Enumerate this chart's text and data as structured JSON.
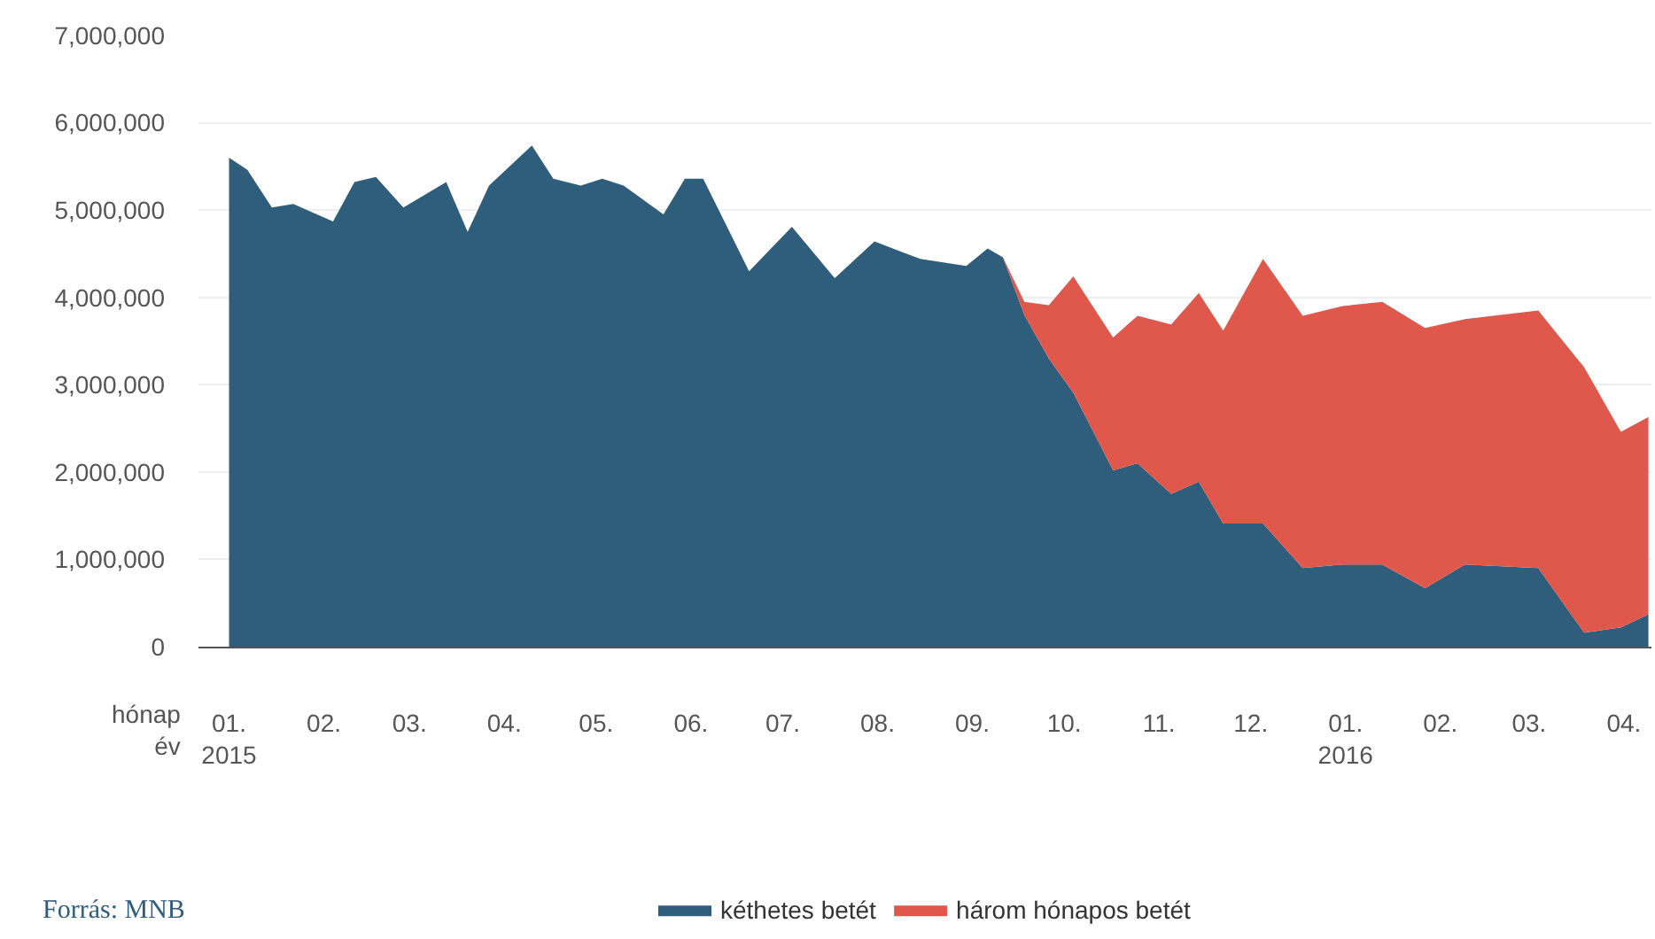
{
  "chart_data": {
    "type": "area",
    "stacked": true,
    "x": [
      "2015-01-01",
      "2015-01-07",
      "2015-01-15",
      "2015-01-22",
      "2015-02-04",
      "2015-02-11",
      "2015-02-18",
      "2015-02-27",
      "2015-03-13",
      "2015-03-20",
      "2015-03-27",
      "2015-04-10",
      "2015-04-17",
      "2015-04-26",
      "2015-05-03",
      "2015-05-10",
      "2015-05-23",
      "2015-05-30",
      "2015-06-05",
      "2015-06-20",
      "2015-07-04",
      "2015-07-18",
      "2015-07-31",
      "2015-08-15",
      "2015-08-30",
      "2015-09-06",
      "2015-09-11",
      "2015-09-18",
      "2015-09-26",
      "2015-10-04",
      "2015-10-17",
      "2015-10-25",
      "2015-11-05",
      "2015-11-14",
      "2015-11-22",
      "2015-12-05",
      "2015-12-18",
      "2015-12-31",
      "2016-01-13",
      "2016-01-27",
      "2016-02-09",
      "2016-03-04",
      "2016-03-19",
      "2016-03-31",
      "2016-04-09"
    ],
    "series": [
      {
        "name": "kéthetes betét",
        "color": "#2f5d7c",
        "values": [
          5600000,
          5460000,
          5030000,
          5070000,
          4870000,
          5320000,
          5380000,
          5030000,
          5320000,
          4750000,
          5280000,
          5740000,
          5360000,
          5280000,
          5360000,
          5280000,
          4950000,
          5360000,
          5360000,
          4300000,
          4810000,
          4220000,
          4640000,
          4440000,
          4360000,
          4560000,
          4460000,
          3800000,
          3300000,
          2910000,
          2020000,
          2100000,
          1750000,
          1890000,
          1410000,
          1410000,
          900000,
          940000,
          940000,
          670000,
          940000,
          900000,
          160000,
          220000,
          370000
        ]
      },
      {
        "name": "három hónapos betét",
        "color": "#e0574c",
        "values": [
          0,
          0,
          0,
          0,
          0,
          0,
          0,
          0,
          0,
          0,
          0,
          0,
          0,
          0,
          0,
          0,
          0,
          0,
          0,
          0,
          0,
          0,
          0,
          0,
          0,
          0,
          0,
          150000,
          610000,
          1330000,
          1520000,
          1690000,
          1940000,
          2160000,
          2210000,
          3030000,
          2890000,
          2960000,
          3010000,
          2980000,
          2810000,
          2950000,
          3040000,
          2240000,
          2260000
        ]
      }
    ],
    "xlabel": "hónap\név",
    "xlim": [
      "2014-12-22",
      "2016-04-10"
    ],
    "xticks": [
      {
        "value": "2015-01-01",
        "label": "01.\n2015"
      },
      {
        "value": "2015-02-01",
        "label": "02."
      },
      {
        "value": "2015-03-01",
        "label": "03."
      },
      {
        "value": "2015-04-01",
        "label": "04."
      },
      {
        "value": "2015-05-01",
        "label": "05."
      },
      {
        "value": "2015-06-01",
        "label": "06."
      },
      {
        "value": "2015-07-01",
        "label": "07."
      },
      {
        "value": "2015-08-01",
        "label": "08."
      },
      {
        "value": "2015-09-01",
        "label": "09."
      },
      {
        "value": "2015-10-01",
        "label": "10."
      },
      {
        "value": "2015-11-01",
        "label": "11."
      },
      {
        "value": "2015-12-01",
        "label": "12."
      },
      {
        "value": "2016-01-01",
        "label": "01.\n2016"
      },
      {
        "value": "2016-02-01",
        "label": "02."
      },
      {
        "value": "2016-03-01",
        "label": "03."
      },
      {
        "value": "2016-04-01",
        "label": "04."
      }
    ],
    "ylim": [
      0,
      7000000
    ],
    "yticks": [
      {
        "value": 0,
        "label": "0"
      },
      {
        "value": 1000000,
        "label": "1,000,000"
      },
      {
        "value": 2000000,
        "label": "2,000,000"
      },
      {
        "value": 3000000,
        "label": "3,000,000"
      },
      {
        "value": 4000000,
        "label": "4,000,000"
      },
      {
        "value": 5000000,
        "label": "5,000,000"
      },
      {
        "value": 6000000,
        "label": "6,000,000"
      },
      {
        "value": 7000000,
        "label": "7,000,000"
      }
    ],
    "grid": "y",
    "legend": "bottom",
    "annotations": [
      "Forrás: MNB"
    ]
  }
}
